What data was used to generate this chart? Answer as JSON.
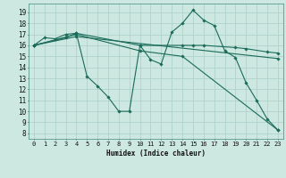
{
  "title": "",
  "xlabel": "Humidex (Indice chaleur)",
  "bg_color": "#cde8e0",
  "grid_color": "#aacfc8",
  "line_color": "#1a6b5a",
  "xlim": [
    -0.5,
    23.5
  ],
  "ylim": [
    7.5,
    19.8
  ],
  "yticks": [
    8,
    9,
    10,
    11,
    12,
    13,
    14,
    15,
    16,
    17,
    18,
    19
  ],
  "xticks": [
    0,
    1,
    2,
    3,
    4,
    5,
    6,
    7,
    8,
    9,
    10,
    11,
    12,
    13,
    14,
    15,
    16,
    17,
    18,
    19,
    20,
    21,
    22,
    23
  ],
  "series": [
    {
      "x": [
        0,
        1,
        2,
        3,
        4,
        5,
        6,
        7,
        8,
        9,
        10,
        11,
        12,
        13,
        14,
        15,
        16,
        17,
        18,
        19,
        20,
        21,
        22,
        23
      ],
      "y": [
        16.0,
        16.7,
        16.6,
        17.0,
        17.1,
        13.2,
        12.3,
        11.3,
        10.0,
        10.0,
        16.0,
        14.7,
        14.3,
        17.2,
        18.0,
        19.2,
        18.3,
        17.8,
        15.5,
        14.9,
        12.6,
        11.0,
        9.3,
        8.3
      ]
    },
    {
      "x": [
        0,
        3,
        4,
        10,
        14,
        15,
        16,
        19,
        20,
        22,
        23
      ],
      "y": [
        16.0,
        16.7,
        17.1,
        16.0,
        16.0,
        16.0,
        16.0,
        15.8,
        15.7,
        15.4,
        15.3
      ]
    },
    {
      "x": [
        0,
        4,
        10,
        14,
        23
      ],
      "y": [
        16.0,
        17.0,
        15.5,
        15.0,
        8.3
      ]
    },
    {
      "x": [
        0,
        4,
        23
      ],
      "y": [
        16.0,
        16.8,
        14.8
      ]
    }
  ]
}
